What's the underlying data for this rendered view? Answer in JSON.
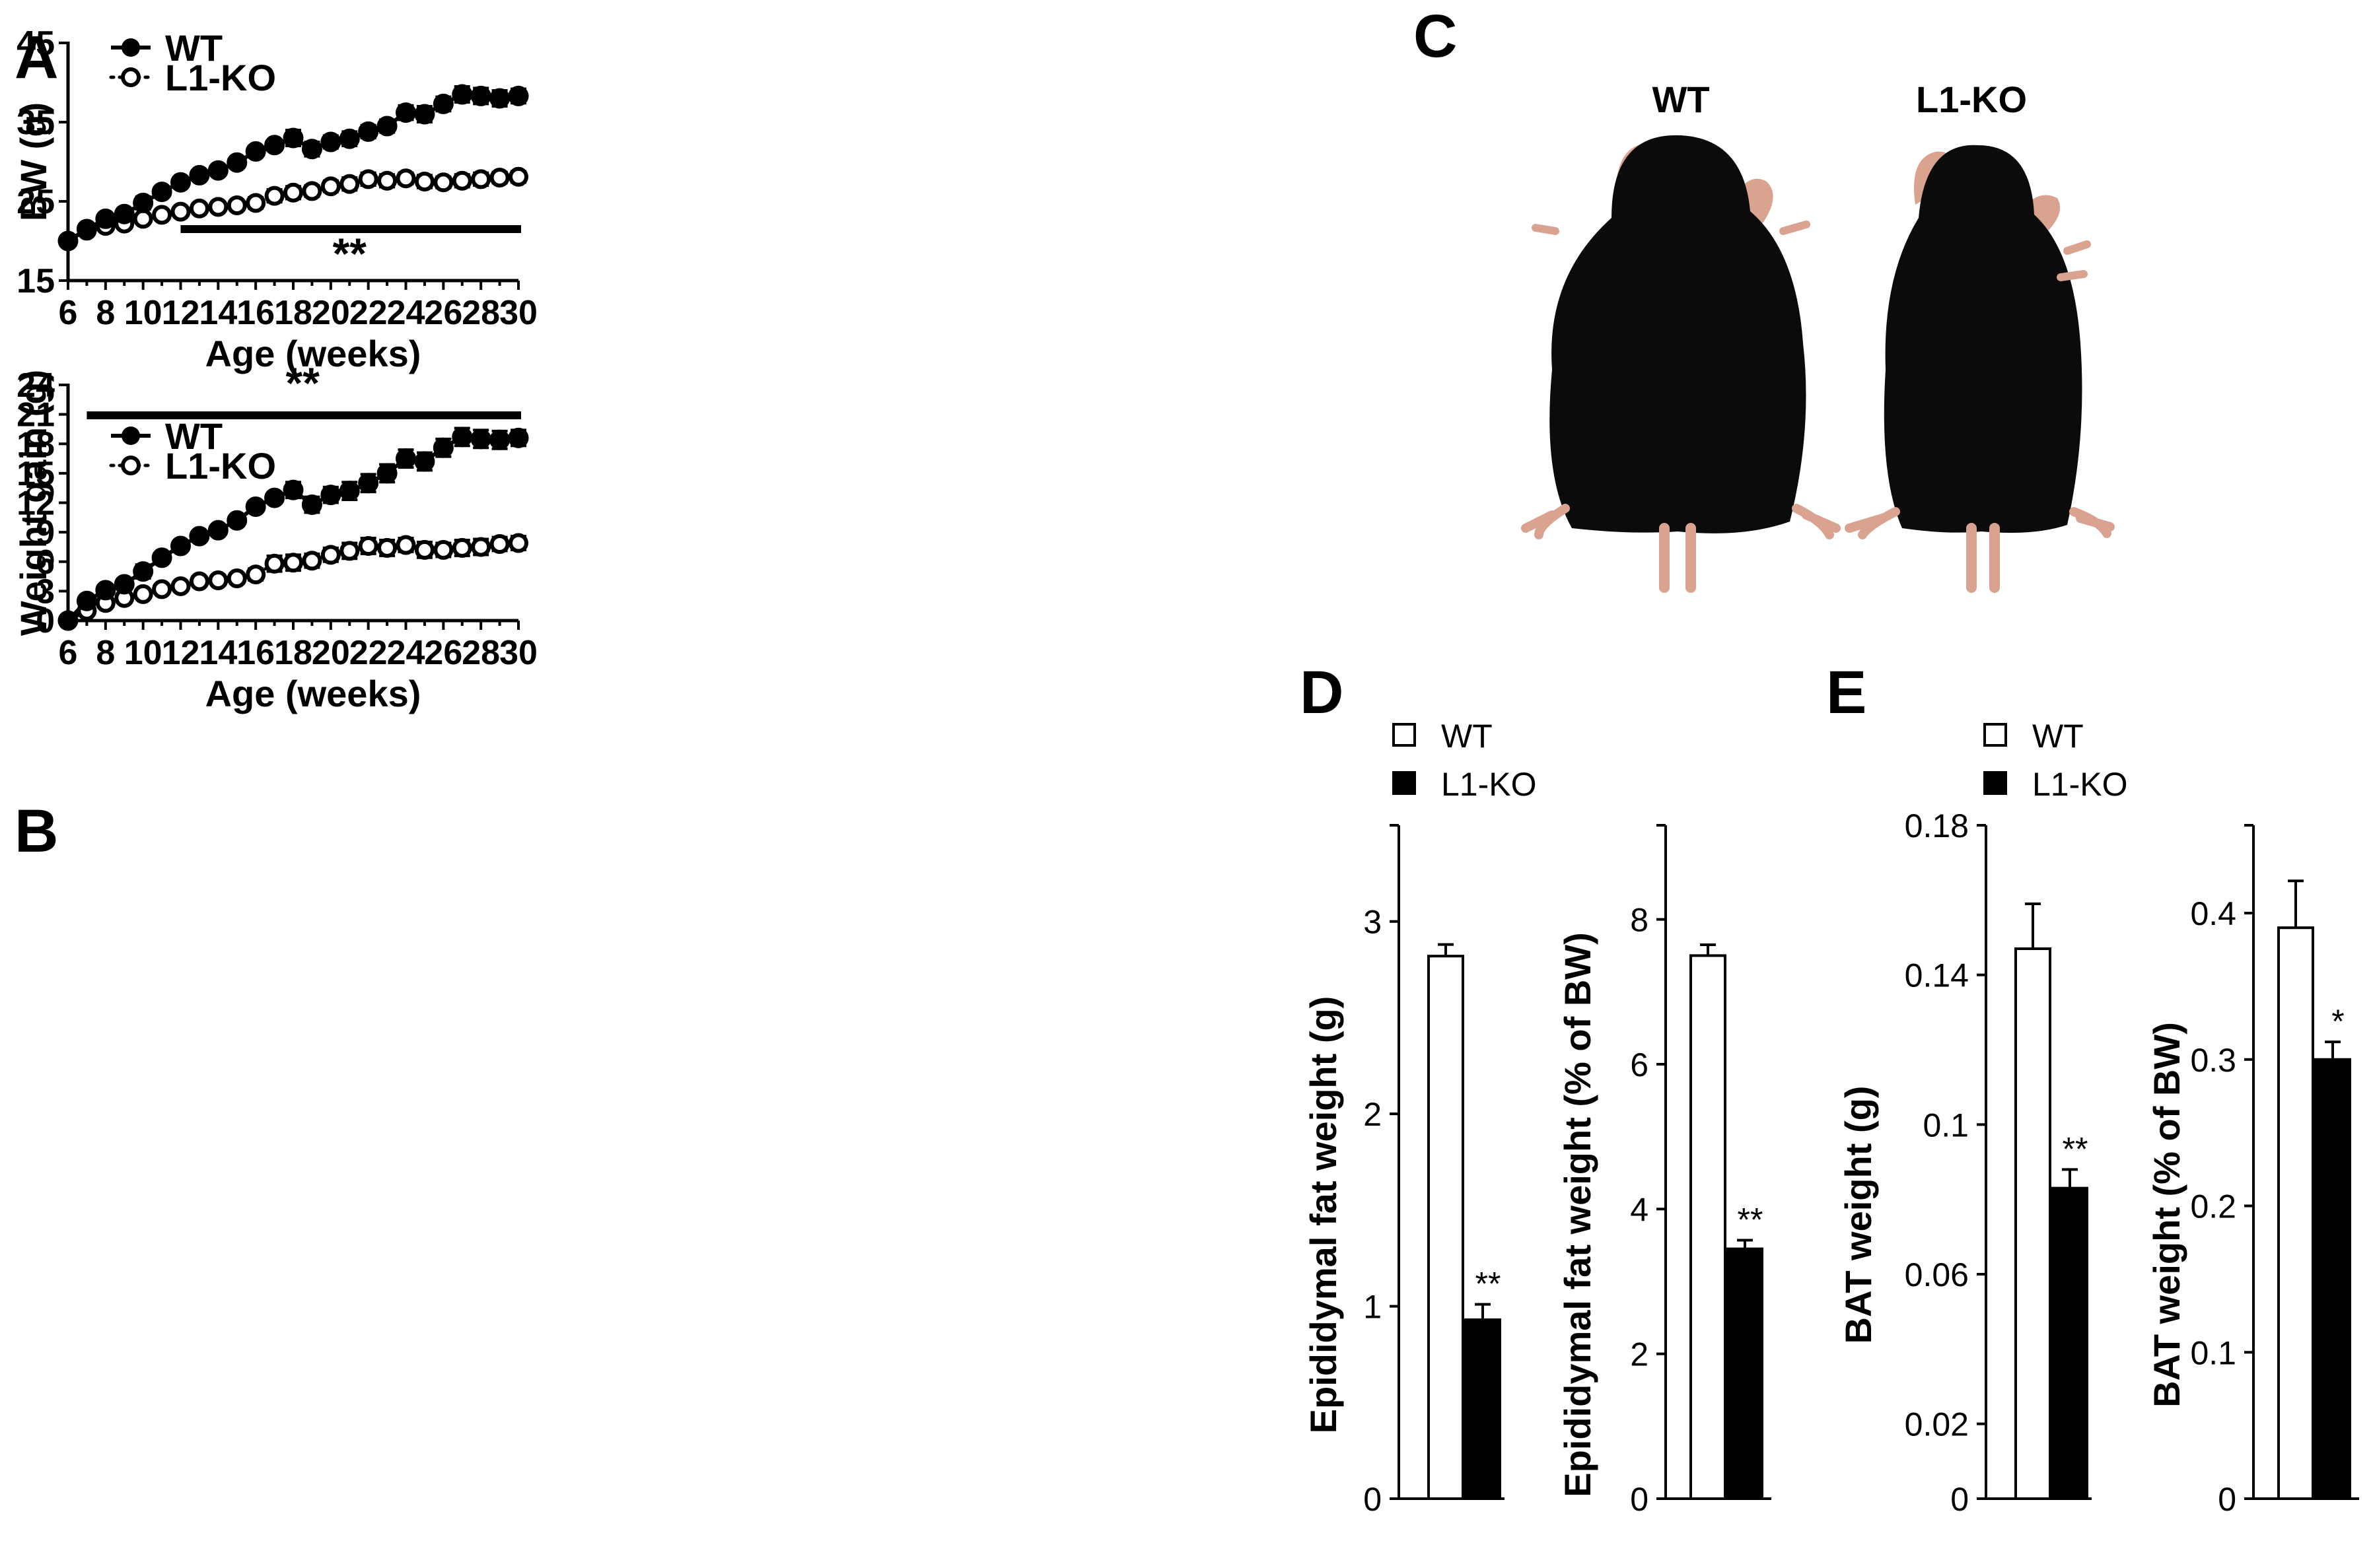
{
  "panels": {
    "A": "A",
    "B": "B",
    "C": "C",
    "D": "D",
    "E": "E"
  },
  "colors": {
    "wt": "#000000",
    "l1ko_fill": "#ffffff",
    "mouse_fur": "#0b0b0b",
    "mouse_skin": "#d9a38f"
  },
  "photo": {
    "wt_label": "WT",
    "l1ko_label": "L1-KO"
  },
  "chart_data": [
    {
      "id": "A",
      "type": "line",
      "title": "",
      "xlabel": "Age (weeks)",
      "ylabel": "BW (g)",
      "xlim": [
        6,
        30
      ],
      "ylim": [
        15,
        45
      ],
      "xticks": [
        6,
        8,
        10,
        12,
        14,
        16,
        18,
        20,
        22,
        24,
        26,
        28,
        30
      ],
      "yticks": [
        15,
        25,
        35,
        45
      ],
      "legend": [
        "WT",
        "L1-KO"
      ],
      "legend_position": "top-left",
      "significance": {
        "label": "**",
        "x_start": 12,
        "x_end": 30,
        "y": 21.5
      },
      "x": [
        6,
        7,
        8,
        9,
        10,
        11,
        12,
        13,
        14,
        15,
        16,
        17,
        18,
        19,
        20,
        21,
        22,
        23,
        24,
        25,
        26,
        27,
        28,
        29,
        30
      ],
      "series": [
        {
          "name": "WT",
          "style": "solid",
          "marker": "filled",
          "values": [
            20.0,
            21.5,
            22.8,
            23.4,
            24.8,
            26.2,
            27.4,
            28.3,
            28.9,
            29.9,
            31.3,
            32.1,
            33.0,
            31.6,
            32.5,
            32.9,
            33.8,
            34.5,
            36.2,
            36.0,
            37.3,
            38.5,
            38.3,
            38.0,
            38.3
          ],
          "errors": [
            0.5,
            0.5,
            0.4,
            0.4,
            0.8,
            0.4,
            0.4,
            0.4,
            0.4,
            0.6,
            0.4,
            0.6,
            1.0,
            0.9,
            0.8,
            0.9,
            0.8,
            0.8,
            0.9,
            1.0,
            0.9,
            1.0,
            1.0,
            1.0,
            0.9
          ]
        },
        {
          "name": "L1-KO",
          "style": "dotted",
          "marker": "open",
          "values": [
            20.0,
            21.3,
            21.9,
            22.2,
            22.8,
            23.3,
            23.7,
            24.1,
            24.3,
            24.5,
            24.8,
            25.7,
            26.1,
            26.3,
            26.9,
            27.2,
            27.8,
            27.6,
            27.9,
            27.5,
            27.4,
            27.6,
            27.8,
            28.0,
            28.1
          ],
          "errors": [
            0.4,
            0.4,
            0.4,
            0.4,
            0.4,
            0.4,
            0.4,
            0.4,
            0.4,
            0.4,
            0.7,
            0.8,
            0.8,
            0.7,
            0.7,
            0.8,
            0.8,
            0.8,
            0.7,
            0.8,
            0.7,
            0.8,
            0.8,
            0.7,
            0.7
          ]
        }
      ]
    },
    {
      "id": "B",
      "type": "line",
      "title": "",
      "xlabel": "Age (weeks)",
      "ylabel": "Weight gain (g)",
      "xlim": [
        6,
        30
      ],
      "ylim": [
        0,
        24
      ],
      "xticks": [
        6,
        8,
        10,
        12,
        14,
        16,
        18,
        20,
        22,
        24,
        26,
        28,
        30
      ],
      "yticks": [
        0,
        3,
        6,
        9,
        12,
        15,
        18,
        21,
        24
      ],
      "legend": [
        "WT",
        "L1-KO"
      ],
      "legend_position": "upper-left",
      "significance": {
        "label": "**",
        "x_start": 7,
        "x_end": 30,
        "y": 20.9
      },
      "x": [
        6,
        7,
        8,
        9,
        10,
        11,
        12,
        13,
        14,
        15,
        16,
        17,
        18,
        19,
        20,
        21,
        22,
        23,
        24,
        25,
        26,
        27,
        28,
        29,
        30
      ],
      "series": [
        {
          "name": "WT",
          "style": "solid",
          "marker": "filled",
          "values": [
            0,
            2.0,
            3.1,
            3.7,
            5.0,
            6.4,
            7.6,
            8.6,
            9.2,
            10.2,
            11.6,
            12.5,
            13.3,
            11.8,
            12.8,
            13.2,
            14.0,
            15.0,
            16.5,
            16.2,
            17.6,
            18.7,
            18.5,
            18.4,
            18.6
          ],
          "errors": [
            0.2,
            0.3,
            0.3,
            0.3,
            0.7,
            0.3,
            0.3,
            0.3,
            0.3,
            0.5,
            0.4,
            0.5,
            0.8,
            0.8,
            0.8,
            0.9,
            0.9,
            0.9,
            0.9,
            0.9,
            0.9,
            0.9,
            0.9,
            0.9,
            0.8
          ]
        },
        {
          "name": "L1-KO",
          "style": "dotted",
          "marker": "open",
          "values": [
            0,
            1.0,
            1.8,
            2.3,
            2.7,
            3.2,
            3.5,
            4.0,
            4.1,
            4.3,
            4.7,
            5.8,
            5.9,
            6.1,
            6.7,
            7.1,
            7.6,
            7.4,
            7.7,
            7.2,
            7.2,
            7.4,
            7.5,
            7.8,
            7.9
          ],
          "errors": [
            0.2,
            0.3,
            0.3,
            0.3,
            0.3,
            0.3,
            0.3,
            0.3,
            0.3,
            0.5,
            0.6,
            0.8,
            0.8,
            0.7,
            0.7,
            0.8,
            0.8,
            0.8,
            0.7,
            0.8,
            0.7,
            0.8,
            0.8,
            0.7,
            0.7
          ]
        }
      ]
    },
    {
      "id": "D1",
      "type": "bar",
      "title": "",
      "xlabel": "",
      "ylabel": "Epididymal fat weight (g)",
      "ylim": [
        0,
        3.5
      ],
      "yticks": [
        0,
        1,
        2,
        3
      ],
      "ytick_labels": [
        "0",
        "1",
        "2",
        "3"
      ],
      "categories": [
        "WT",
        "L1-KO"
      ],
      "values": [
        2.82,
        0.93
      ],
      "errors": [
        0.06,
        0.08
      ],
      "significance": [
        "",
        "**"
      ]
    },
    {
      "id": "D2",
      "type": "bar",
      "title": "",
      "xlabel": "",
      "ylabel": "Epididymal fat weight  (% of BW)",
      "ylim": [
        0,
        9.3
      ],
      "yticks": [
        0,
        2,
        4,
        6,
        8
      ],
      "ytick_labels": [
        "0",
        "2",
        "4",
        "6",
        "8"
      ],
      "categories": [
        "WT",
        "L1-KO"
      ],
      "values": [
        7.5,
        3.45
      ],
      "errors": [
        0.15,
        0.12
      ],
      "significance": [
        "",
        "**"
      ]
    },
    {
      "id": "E1",
      "type": "bar",
      "title": "",
      "xlabel": "",
      "ylabel": "BAT weight (g)",
      "ylim": [
        0,
        0.18
      ],
      "yticks": [
        0,
        0.02,
        0.06,
        0.1,
        0.14,
        0.18
      ],
      "ytick_labels": [
        "0",
        "0.02",
        "0.06",
        "0.1",
        "0.14",
        "0.18"
      ],
      "categories": [
        "WT",
        "L1-KO"
      ],
      "values": [
        0.147,
        0.083
      ],
      "errors": [
        0.012,
        0.005
      ],
      "significance": [
        "",
        "**"
      ]
    },
    {
      "id": "E2",
      "type": "bar",
      "title": "",
      "xlabel": "",
      "ylabel": "BAT weight (% of BW)",
      "ylim": [
        0,
        0.46
      ],
      "yticks": [
        0,
        0.1,
        0.2,
        0.3,
        0.4
      ],
      "ytick_labels": [
        "0",
        "0.1",
        "0.2",
        "0.3",
        "0.4"
      ],
      "categories": [
        "WT",
        "L1-KO"
      ],
      "values": [
        0.39,
        0.3
      ],
      "errors": [
        0.032,
        0.012
      ],
      "significance": [
        "",
        "*"
      ]
    }
  ],
  "bar_legends": {
    "D": [
      "WT",
      "L1-KO"
    ],
    "E": [
      "WT",
      "L1-KO"
    ]
  }
}
